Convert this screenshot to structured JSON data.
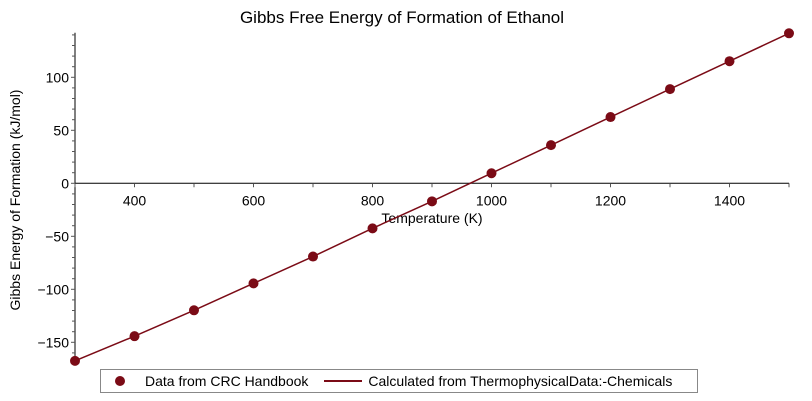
{
  "chart_data": {
    "type": "line",
    "title": "Gibbs Free Energy of Formation of Ethanol",
    "xlabel": "Temperature (K)",
    "ylabel": "Gibbs Energy of Formation (kJ/mol)",
    "xlim": [
      300,
      1500
    ],
    "ylim": [
      -170,
      142
    ],
    "xticks": [
      400,
      600,
      800,
      1000,
      1200,
      1400
    ],
    "yticks": [
      -150,
      -100,
      -50,
      0,
      50,
      100
    ],
    "grid": false,
    "legend_position": "bottom",
    "series": [
      {
        "name": "Data from CRC Handbook",
        "kind": "scatter",
        "color": "#7b0b16",
        "x": [
          300,
          400,
          500,
          600,
          700,
          800,
          900,
          1000,
          1100,
          1200,
          1300,
          1400,
          1500
        ],
        "y": [
          -167.5,
          -144.2,
          -119.8,
          -94.4,
          -69.1,
          -42.5,
          -17.0,
          9.5,
          36.0,
          62.5,
          88.9,
          115.2,
          141.5
        ]
      },
      {
        "name": "Calculated from ThermophysicalData:-Chemicals",
        "kind": "line",
        "color": "#7b0b16",
        "x": [
          300,
          400,
          500,
          600,
          700,
          800,
          900,
          1000,
          1100,
          1200,
          1300,
          1400,
          1500
        ],
        "y": [
          -167.5,
          -144.2,
          -119.8,
          -94.4,
          -69.1,
          -42.5,
          -17.0,
          9.5,
          36.0,
          62.5,
          88.9,
          115.2,
          141.5
        ]
      }
    ]
  }
}
